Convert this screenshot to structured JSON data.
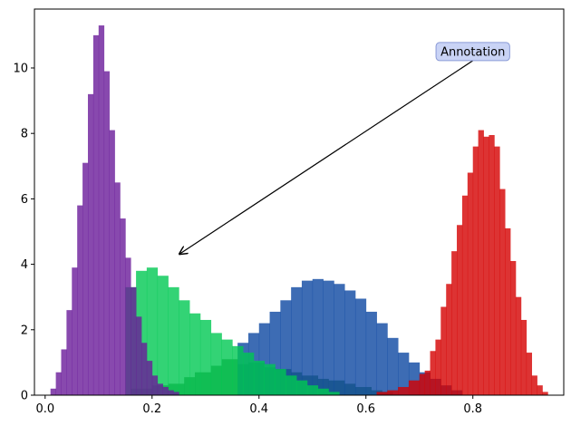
{
  "chart_data": {
    "type": "histogram",
    "title": "",
    "xlabel": "",
    "ylabel": "",
    "xlim": [
      -0.02,
      0.97
    ],
    "ylim": [
      0,
      11.8
    ],
    "grid": false,
    "x_ticks": [
      0.0,
      0.2,
      0.4,
      0.6,
      0.8
    ],
    "x_tick_labels": [
      "0.0",
      "0.2",
      "0.4",
      "0.6",
      "0.8"
    ],
    "y_ticks": [
      0,
      2,
      4,
      6,
      8,
      10
    ],
    "y_tick_labels": [
      "0",
      "2",
      "4",
      "6",
      "8",
      "10"
    ],
    "series": [
      {
        "color": "#2e7d32",
        "bins": [
          [
            0.16,
            0.2
          ],
          [
            0.2,
            0.3
          ],
          [
            0.23,
            0.35
          ],
          [
            0.26,
            0.55
          ],
          [
            0.28,
            0.7
          ],
          [
            0.31,
            0.9
          ],
          [
            0.33,
            1.1
          ],
          [
            0.36,
            0.95
          ],
          [
            0.38,
            1.0
          ],
          [
            0.41,
            0.85
          ],
          [
            0.43,
            0.8
          ],
          [
            0.46,
            0.7
          ],
          [
            0.48,
            0.6
          ],
          [
            0.51,
            0.5
          ],
          [
            0.53,
            0.45
          ],
          [
            0.56,
            0.35
          ],
          [
            0.58,
            0.25
          ],
          [
            0.61,
            0.15
          ],
          [
            0.63,
            0.1
          ]
        ]
      },
      {
        "color": "#0d47a1",
        "bins": [
          [
            0.36,
            1.6
          ],
          [
            0.38,
            1.9
          ],
          [
            0.4,
            2.2
          ],
          [
            0.42,
            2.55
          ],
          [
            0.44,
            2.9
          ],
          [
            0.46,
            3.3
          ],
          [
            0.48,
            3.5
          ],
          [
            0.5,
            3.55
          ],
          [
            0.52,
            3.5
          ],
          [
            0.54,
            3.4
          ],
          [
            0.56,
            3.2
          ],
          [
            0.58,
            2.95
          ],
          [
            0.6,
            2.55
          ],
          [
            0.62,
            2.2
          ],
          [
            0.64,
            1.75
          ],
          [
            0.66,
            1.3
          ],
          [
            0.68,
            1.0
          ],
          [
            0.7,
            0.7
          ],
          [
            0.72,
            0.5
          ],
          [
            0.74,
            0.3
          ],
          [
            0.76,
            0.15
          ]
        ]
      },
      {
        "color": "#d50000",
        "bins": [
          [
            0.62,
            0.1
          ],
          [
            0.64,
            0.15
          ],
          [
            0.66,
            0.25
          ],
          [
            0.68,
            0.45
          ],
          [
            0.7,
            0.65
          ],
          [
            0.71,
            0.75
          ],
          [
            0.72,
            1.35
          ],
          [
            0.73,
            1.7
          ],
          [
            0.74,
            2.7
          ],
          [
            0.75,
            3.4
          ],
          [
            0.76,
            4.4
          ],
          [
            0.77,
            5.2
          ],
          [
            0.78,
            6.1
          ],
          [
            0.79,
            6.8
          ],
          [
            0.8,
            7.6
          ],
          [
            0.81,
            8.1
          ],
          [
            0.82,
            7.9
          ],
          [
            0.83,
            7.95
          ],
          [
            0.84,
            7.6
          ],
          [
            0.85,
            6.3
          ],
          [
            0.86,
            5.1
          ],
          [
            0.87,
            4.1
          ],
          [
            0.88,
            3.0
          ],
          [
            0.89,
            2.3
          ],
          [
            0.9,
            1.3
          ],
          [
            0.91,
            0.6
          ],
          [
            0.92,
            0.3
          ],
          [
            0.93,
            0.1
          ]
        ]
      },
      {
        "color": "#00c853",
        "bins": [
          [
            0.15,
            3.3
          ],
          [
            0.17,
            3.8
          ],
          [
            0.19,
            3.9
          ],
          [
            0.21,
            3.65
          ],
          [
            0.23,
            3.3
          ],
          [
            0.25,
            2.9
          ],
          [
            0.27,
            2.5
          ],
          [
            0.29,
            2.3
          ],
          [
            0.31,
            1.9
          ],
          [
            0.33,
            1.7
          ],
          [
            0.35,
            1.5
          ],
          [
            0.37,
            1.3
          ],
          [
            0.39,
            1.05
          ],
          [
            0.41,
            0.95
          ],
          [
            0.43,
            0.8
          ],
          [
            0.45,
            0.6
          ],
          [
            0.47,
            0.45
          ],
          [
            0.49,
            0.3
          ],
          [
            0.51,
            0.2
          ],
          [
            0.53,
            0.1
          ]
        ]
      },
      {
        "color": "#6a1b9a",
        "bins": [
          [
            0.01,
            0.2
          ],
          [
            0.02,
            0.7
          ],
          [
            0.03,
            1.4
          ],
          [
            0.04,
            2.6
          ],
          [
            0.05,
            3.9
          ],
          [
            0.06,
            5.8
          ],
          [
            0.07,
            7.1
          ],
          [
            0.08,
            9.2
          ],
          [
            0.09,
            11.0
          ],
          [
            0.1,
            11.3
          ],
          [
            0.11,
            9.9
          ],
          [
            0.12,
            8.1
          ],
          [
            0.13,
            6.5
          ],
          [
            0.14,
            5.4
          ],
          [
            0.15,
            4.2
          ],
          [
            0.16,
            3.3
          ],
          [
            0.17,
            2.4
          ],
          [
            0.18,
            1.6
          ],
          [
            0.19,
            1.05
          ],
          [
            0.2,
            0.6
          ],
          [
            0.21,
            0.35
          ],
          [
            0.22,
            0.25
          ],
          [
            0.23,
            0.15
          ],
          [
            0.24,
            0.1
          ]
        ]
      }
    ],
    "annotation": {
      "text": "Annotation",
      "xy": [
        0.25,
        4.3
      ],
      "xytext": [
        0.8,
        10.5
      ]
    }
  }
}
